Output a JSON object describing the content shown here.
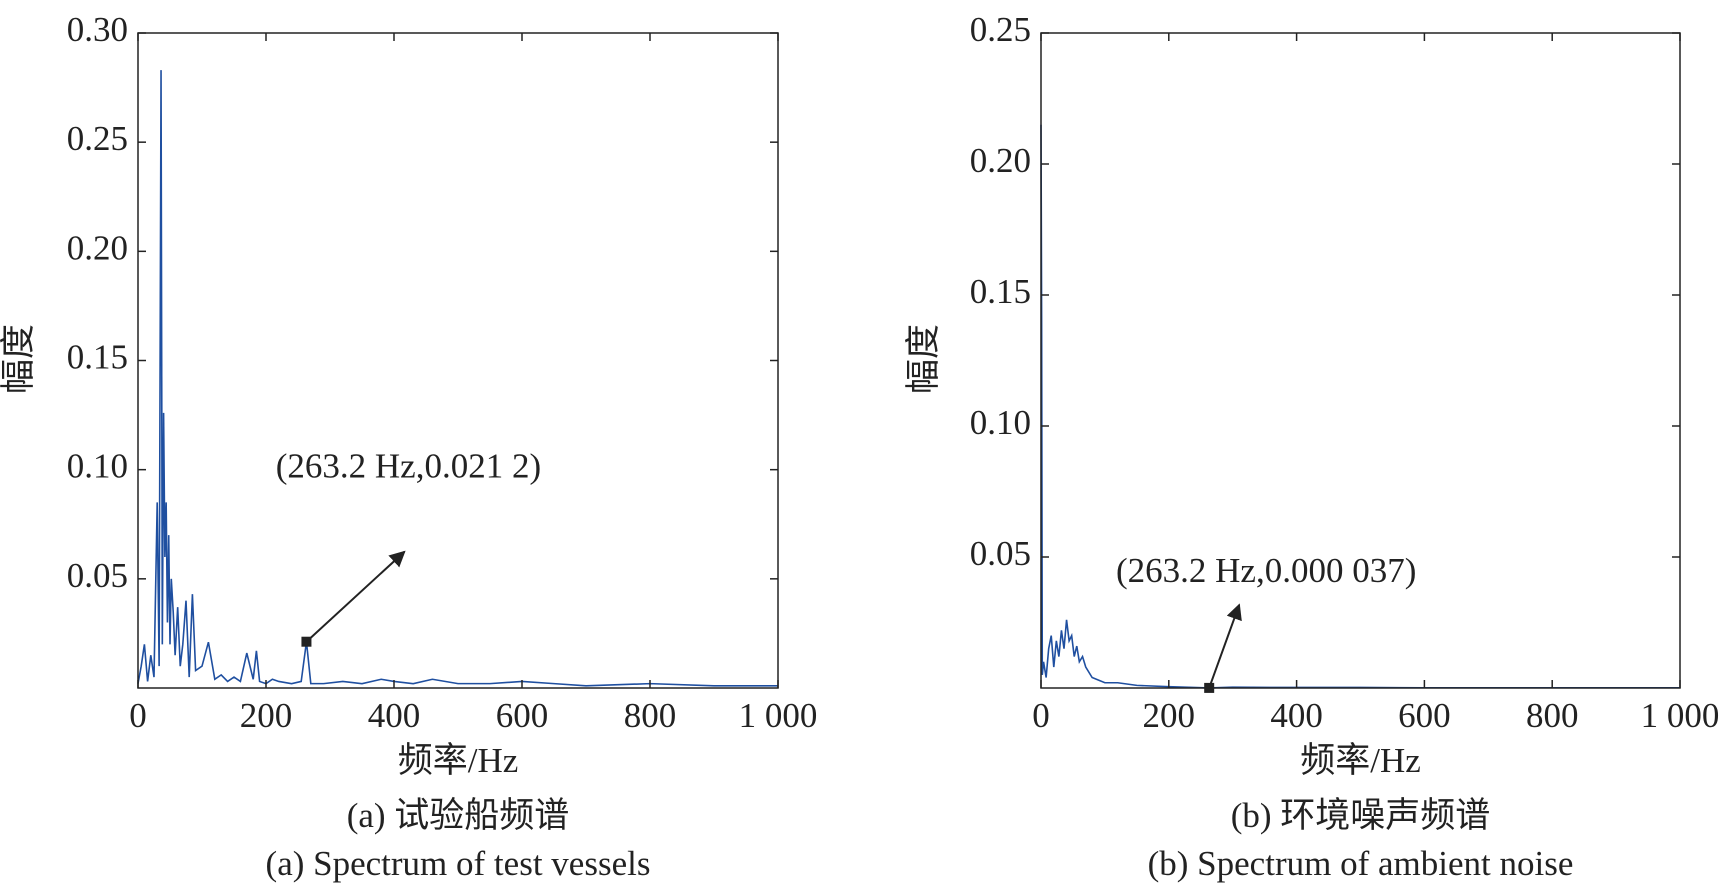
{
  "chart_data": [
    {
      "type": "line",
      "x_label": "频率/Hz",
      "y_label": "幅度",
      "caption": "(a) 试验船频谱",
      "caption_en": "(a) Spectrum of test vessels",
      "color": "#1f4fa0",
      "x": [
        0,
        5,
        10,
        15,
        20,
        25,
        30,
        33,
        36,
        38,
        40,
        42,
        44,
        46,
        48,
        50,
        52,
        55,
        58,
        62,
        66,
        70,
        75,
        80,
        85,
        90,
        100,
        110,
        120,
        130,
        140,
        150,
        160,
        170,
        180,
        185,
        190,
        200,
        210,
        220,
        240,
        255,
        263.2,
        270,
        290,
        320,
        350,
        380,
        400,
        430,
        460,
        500,
        550,
        600,
        650,
        700,
        800,
        900,
        1000
      ],
      "values": [
        0.002,
        0.01,
        0.02,
        0.003,
        0.015,
        0.005,
        0.085,
        0.01,
        0.283,
        0.02,
        0.126,
        0.06,
        0.085,
        0.03,
        0.07,
        0.02,
        0.05,
        0.035,
        0.015,
        0.037,
        0.01,
        0.02,
        0.04,
        0.005,
        0.043,
        0.008,
        0.01,
        0.021,
        0.004,
        0.006,
        0.003,
        0.005,
        0.003,
        0.016,
        0.004,
        0.017,
        0.003,
        0.002,
        0.004,
        0.003,
        0.002,
        0.003,
        0.0212,
        0.002,
        0.002,
        0.003,
        0.002,
        0.004,
        0.003,
        0.002,
        0.004,
        0.002,
        0.002,
        0.003,
        0.002,
        0.001,
        0.002,
        0.001,
        0.001
      ],
      "xlim": [
        0,
        1000
      ],
      "xticks": [
        0,
        200,
        400,
        600,
        800,
        {
          "value": 1000,
          "label": "1 000"
        }
      ],
      "ylim": [
        0,
        0.3
      ],
      "yticks": [
        0.05,
        {
          "value": 0.1,
          "label": "0.10"
        },
        0.15,
        {
          "value": 0.2,
          "label": "0.20"
        },
        0.25,
        {
          "value": 0.3,
          "label": "0.30"
        }
      ],
      "annotation": {
        "text": "(263.2 Hz,0.021 2)",
        "x": 263.2,
        "y": 0.0212
      }
    },
    {
      "type": "line",
      "x_label": "频率/Hz",
      "y_label": "幅度",
      "caption": "(b) 环境噪声频谱",
      "caption_en": "(b) Spectrum of ambient noise",
      "color": "#1f4fa0",
      "x": [
        0,
        1,
        2,
        4,
        8,
        12,
        16,
        20,
        24,
        28,
        32,
        36,
        40,
        44,
        48,
        52,
        56,
        60,
        65,
        70,
        80,
        90,
        100,
        120,
        150,
        200,
        263.2,
        300,
        400,
        500,
        600,
        800,
        1000
      ],
      "values": [
        0.215,
        0.14,
        0.005,
        0.01,
        0.004,
        0.015,
        0.02,
        0.008,
        0.018,
        0.012,
        0.022,
        0.015,
        0.026,
        0.018,
        0.02,
        0.012,
        0.016,
        0.01,
        0.012,
        0.008,
        0.004,
        0.003,
        0.002,
        0.002,
        0.001,
        0.0005,
        3.7e-05,
        0.0003,
        0.0002,
        0.0002,
        0.0001,
        0.0001,
        0.0001
      ],
      "xlim": [
        0,
        1000
      ],
      "xticks": [
        0,
        200,
        400,
        600,
        800,
        {
          "value": 1000,
          "label": "1 000"
        }
      ],
      "ylim": [
        0,
        0.25
      ],
      "yticks": [
        0.05,
        {
          "value": 0.1,
          "label": "0.10"
        },
        0.15,
        {
          "value": 0.2,
          "label": "0.20"
        },
        0.25
      ],
      "annotation": {
        "text": "(263.2 Hz,0.000 037)",
        "x": 263.2,
        "y": 3.7e-05
      }
    }
  ]
}
